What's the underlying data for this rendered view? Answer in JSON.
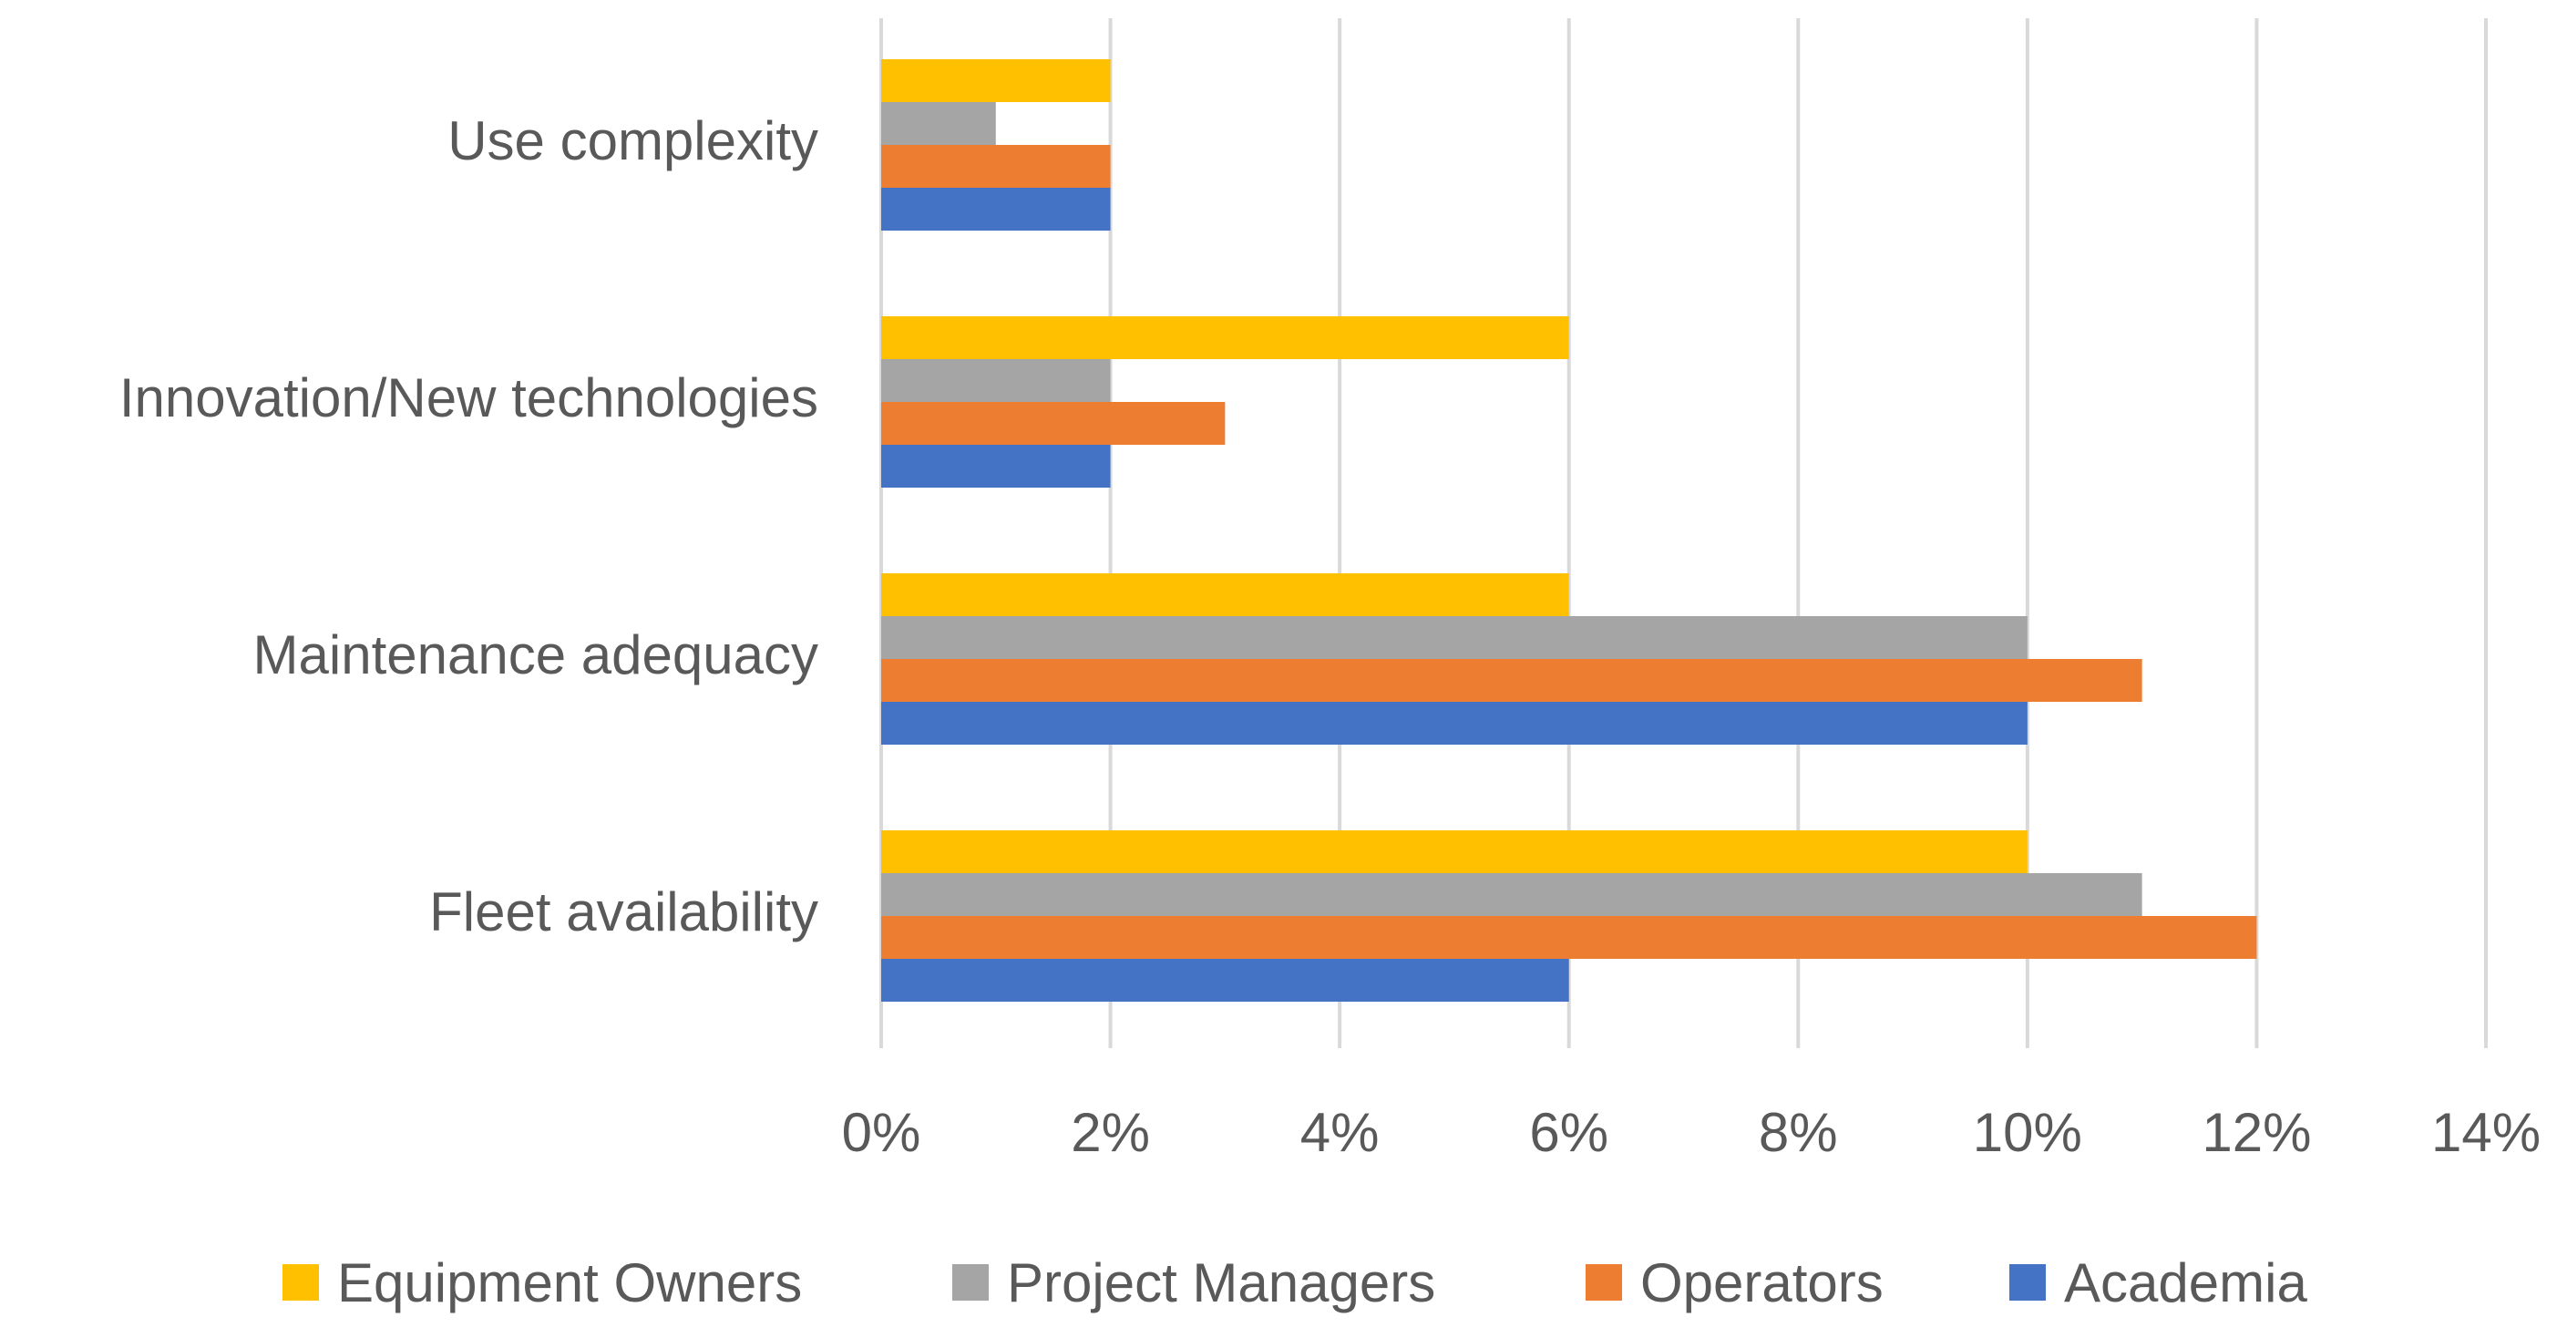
{
  "chart_data": {
    "type": "bar",
    "orientation": "horizontal",
    "categories": [
      "Use complexity",
      "Innovation/New technologies",
      "Maintenance adequacy",
      "Fleet availability"
    ],
    "series": [
      {
        "name": "Equipment Owners",
        "color": "#FFC000",
        "values": [
          2,
          6,
          6,
          10
        ]
      },
      {
        "name": "Project Managers",
        "color": "#A5A5A5",
        "values": [
          1,
          2,
          10,
          11
        ]
      },
      {
        "name": "Operators",
        "color": "#ED7D31",
        "values": [
          2,
          3,
          11,
          12
        ]
      },
      {
        "name": "Academia",
        "color": "#4472C4",
        "values": [
          2,
          2,
          10,
          6
        ]
      }
    ],
    "ticks": [
      "0%",
      "2%",
      "4%",
      "6%",
      "8%",
      "10%",
      "12%",
      "14%"
    ],
    "xlim": [
      0,
      14
    ],
    "grid": true,
    "legend_position": "bottom"
  }
}
